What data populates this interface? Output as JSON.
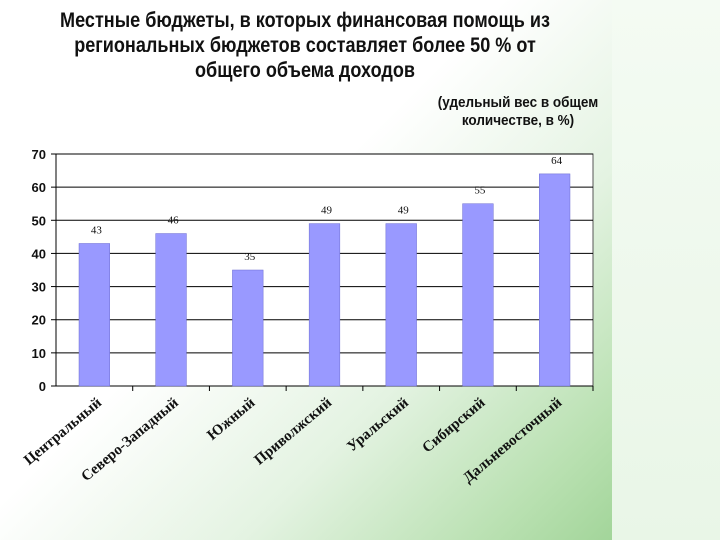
{
  "slide": {
    "title": "Местные бюджеты, в которых финансовая помощь из региональных бюджетов составляет более 50 % от общего объема доходов",
    "note": "(удельный вес в общем количестве, в %)"
  },
  "chart_data": {
    "type": "bar",
    "categories": [
      "Центральный",
      "Северо-Западный",
      "Южный",
      "Приволжский",
      "Уральский",
      "Сибирский",
      "Дальневосточный"
    ],
    "values": [
      43,
      46,
      35,
      49,
      49,
      55,
      64
    ],
    "ylim": [
      0,
      70
    ],
    "yticks": [
      0,
      10,
      20,
      30,
      40,
      50,
      60,
      70
    ],
    "grid": true,
    "bar_color": "#9999ff",
    "legend": "none"
  }
}
